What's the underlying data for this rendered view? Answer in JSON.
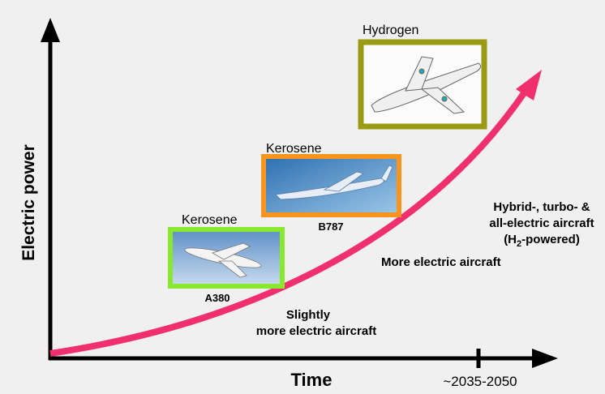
{
  "axes": {
    "y_label": "Electric power",
    "x_label": "Time",
    "x_tick_label": "~2035-2050"
  },
  "aircraft": [
    {
      "fuel": "Kerosene",
      "model": "A380"
    },
    {
      "fuel": "Kerosene",
      "model": "B787"
    },
    {
      "fuel": "Hydrogen"
    }
  ],
  "stages": {
    "slightly": [
      "Slightly",
      "more electric aircraft"
    ],
    "more": "More electric aircraft",
    "hybrid": {
      "lines": [
        "Hybrid-, turbo- &",
        "all-electric aircraft"
      ],
      "last_prefix": "(H",
      "last_sub": "2",
      "last_suffix": "-powered)"
    }
  }
}
